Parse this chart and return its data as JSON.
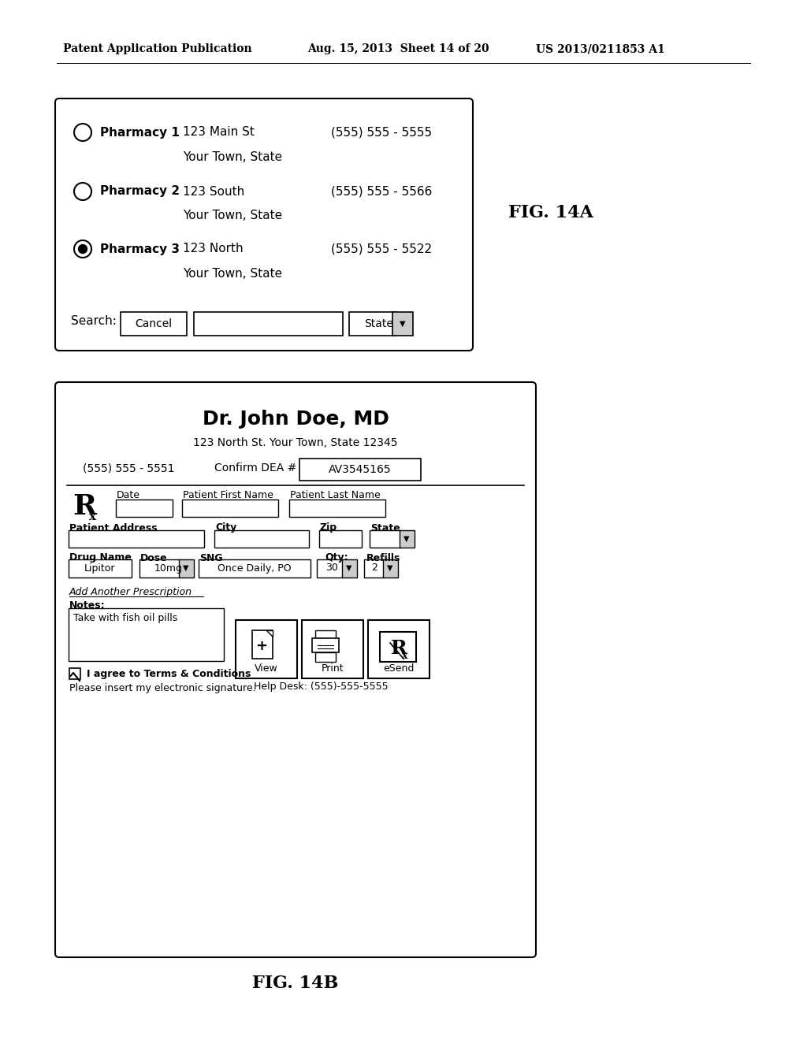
{
  "bg_color": "#ffffff",
  "header_left": "Patent Application Publication",
  "header_mid": "Aug. 15, 2013  Sheet 14 of 20",
  "header_right": "US 2013/0211853 A1",
  "fig14a_label": "FIG. 14A",
  "fig14b_label": "FIG. 14B",
  "pharmacy_data": [
    {
      "name": "Pharmacy 1",
      "addr1": "123 Main St",
      "phone": "(555) 555 - 5555",
      "addr2": "Your Town, State",
      "selected": false
    },
    {
      "name": "Pharmacy 2",
      "addr1": "123 South",
      "phone": "(555) 555 - 5566",
      "addr2": "Your Town, State",
      "selected": false
    },
    {
      "name": "Pharmacy 3",
      "addr1": "123 North",
      "phone": "(555) 555 - 5522",
      "addr2": "Your Town, State",
      "selected": true
    }
  ],
  "rx_title": "Dr. John Doe, MD",
  "rx_subtitle": "123 North St. Your Town, State 12345",
  "rx_phone": "(555) 555 - 5551",
  "rx_dea_label": "Confirm DEA #",
  "rx_dea_value": "AV3545165",
  "date_label": "Date",
  "first_name_label": "Patient First Name",
  "last_name_label": "Patient Last Name",
  "address_label": "Patient Address",
  "city_label": "City",
  "zip_label": "Zip",
  "state_label": "State",
  "drug_label": "Drug Name",
  "drug_value": "Lipitor",
  "dose_label": "Dose",
  "dose_value": "10mg",
  "sng_label": "SNG",
  "sng_value": "Once Daily, PO",
  "qty_label": "Qty:",
  "qty_value": "30",
  "refills_label": "Refills",
  "refills_value": "2",
  "add_prescription": "Add Another Prescription",
  "notes_label": "Notes:",
  "notes_value": "Take with fish oil pills",
  "agree_text": "I agree to Terms & Conditions",
  "signature_text": "Please insert my electronic signature.",
  "help_desk": "Help Desk: (555)-555-5555",
  "btn_view": "View",
  "btn_print": "Print",
  "btn_esend": "eSend",
  "search_label": "Search:",
  "cancel_label": "Cancel",
  "state_dropdown": "State",
  "your_town_state": "Your Town, State"
}
